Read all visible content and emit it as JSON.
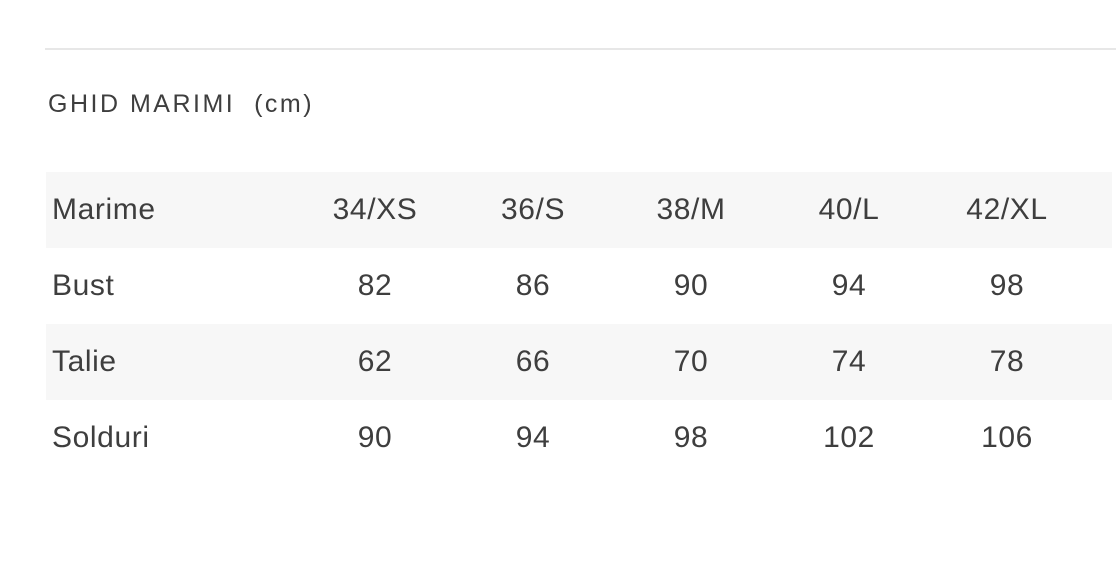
{
  "title": "GHID MARIMI  (cm)",
  "table": {
    "columns": [
      "Marime",
      "34/XS",
      "36/S",
      "38/M",
      "40/L",
      "42/XL"
    ],
    "rows": [
      {
        "label": "Bust",
        "values": [
          "82",
          "86",
          "90",
          "94",
          "98"
        ]
      },
      {
        "label": "Talie",
        "values": [
          "62",
          "66",
          "70",
          "74",
          "78"
        ]
      },
      {
        "label": "Solduri",
        "values": [
          "90",
          "94",
          "98",
          "102",
          "106"
        ]
      }
    ]
  },
  "colors": {
    "band": "#f7f7f7",
    "text": "#3e3e3e",
    "divider": "#e7e7e7",
    "background": "#ffffff"
  }
}
